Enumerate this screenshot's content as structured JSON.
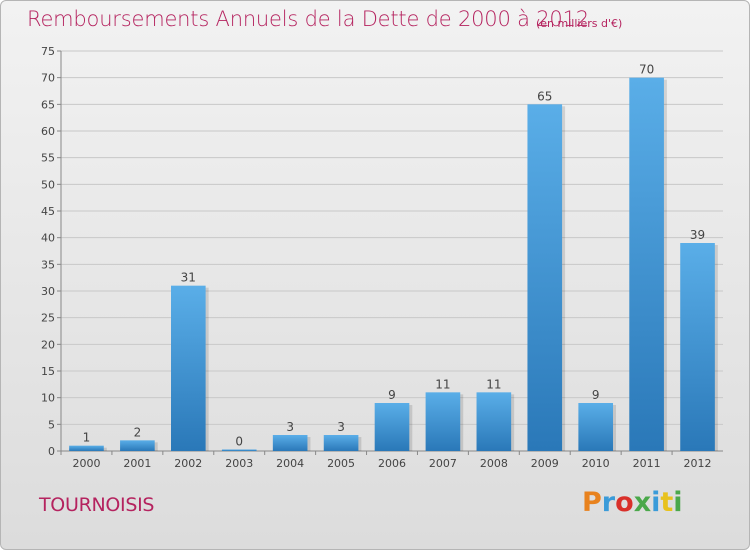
{
  "header": {
    "title": "Remboursements Annuels de la Dette de 2000 à 2012",
    "subtitle": "(en milliers d'€)"
  },
  "footer": {
    "commune": "TOURNOISIS",
    "logo_text": "Proxiti",
    "logo_colors": [
      "#e8821e",
      "#3a9bd9",
      "#d9302a",
      "#4aa84a",
      "#3a9bd9",
      "#e8c21e",
      "#4aa84a"
    ]
  },
  "colors": {
    "bar_light": "#5aaee8",
    "bar_dark": "#2a78b8",
    "text_accent": "#b5235f"
  },
  "chart_data": {
    "type": "bar",
    "title": "Remboursements Annuels de la Dette de 2000 à 2012",
    "subtitle": "(en milliers d'€)",
    "categories": [
      "2000",
      "2001",
      "2002",
      "2003",
      "2004",
      "2005",
      "2006",
      "2007",
      "2008",
      "2009",
      "2010",
      "2011",
      "2012"
    ],
    "values": [
      1,
      2,
      31,
      0,
      3,
      3,
      9,
      11,
      11,
      65,
      9,
      70,
      39
    ],
    "ylim": [
      0,
      75
    ],
    "yticks": [
      0,
      5,
      10,
      15,
      20,
      25,
      30,
      35,
      40,
      45,
      50,
      55,
      60,
      65,
      70,
      75
    ],
    "grid": true,
    "legend": "none"
  }
}
